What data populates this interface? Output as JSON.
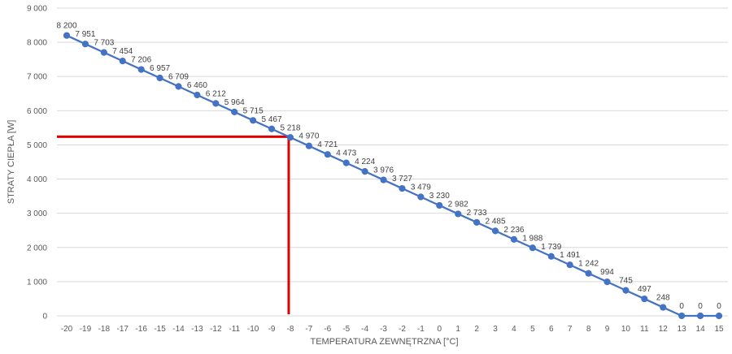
{
  "chart_data": {
    "type": "line",
    "title": "",
    "xlabel": "TEMPERATURA ZEWNĘTRZNA [°C]",
    "ylabel": "STRATY CIEPŁA [W]",
    "ylim": [
      0,
      9000
    ],
    "y_ticks": [
      "0",
      "1 000",
      "2 000",
      "3 000",
      "4 000",
      "5 000",
      "6 000",
      "7 000",
      "8 000",
      "9 000"
    ],
    "y_tick_values": [
      0,
      1000,
      2000,
      3000,
      4000,
      5000,
      6000,
      7000,
      8000,
      9000
    ],
    "grid": true,
    "legend": "none",
    "categories": [
      "-20",
      "-19",
      "-18",
      "-17",
      "-16",
      "-15",
      "-14",
      "-13",
      "-12",
      "-11",
      "-10",
      "-9",
      "-8",
      "-7",
      "-6",
      "-5",
      "-4",
      "-3",
      "-2",
      "-1",
      "0",
      "1",
      "2",
      "3",
      "4",
      "5",
      "6",
      "7",
      "8",
      "9",
      "10",
      "11",
      "12",
      "13",
      "14",
      "15"
    ],
    "series": [
      {
        "values": [
          8200,
          7951,
          7703,
          7454,
          7206,
          6957,
          6709,
          6460,
          6212,
          5964,
          5715,
          5467,
          5218,
          4970,
          4721,
          4473,
          4224,
          3976,
          3727,
          3479,
          3230,
          2982,
          2733,
          2485,
          2236,
          1988,
          1739,
          1491,
          1242,
          994,
          745,
          497,
          248,
          0,
          0,
          0
        ],
        "data_labels": [
          "8 200",
          "7 951",
          "7 703",
          "7 454",
          "7 206",
          "6 957",
          "6 709",
          "6 460",
          "6 212",
          "5 964",
          "5 715",
          "5 467",
          "5 218",
          "4 970",
          "4 721",
          "4 473",
          "4 224",
          "3 976",
          "3 727",
          "3 479",
          "3 230",
          "2 982",
          "2 733",
          "2 485",
          "2 236",
          "1 988",
          "1 739",
          "1 491",
          "1 242",
          "994",
          "745",
          "497",
          "248",
          "0",
          "0",
          "0"
        ],
        "color": "#4472c4"
      }
    ],
    "reference_lines": {
      "color": "#e00000",
      "x": "-8",
      "y": 5240
    }
  }
}
